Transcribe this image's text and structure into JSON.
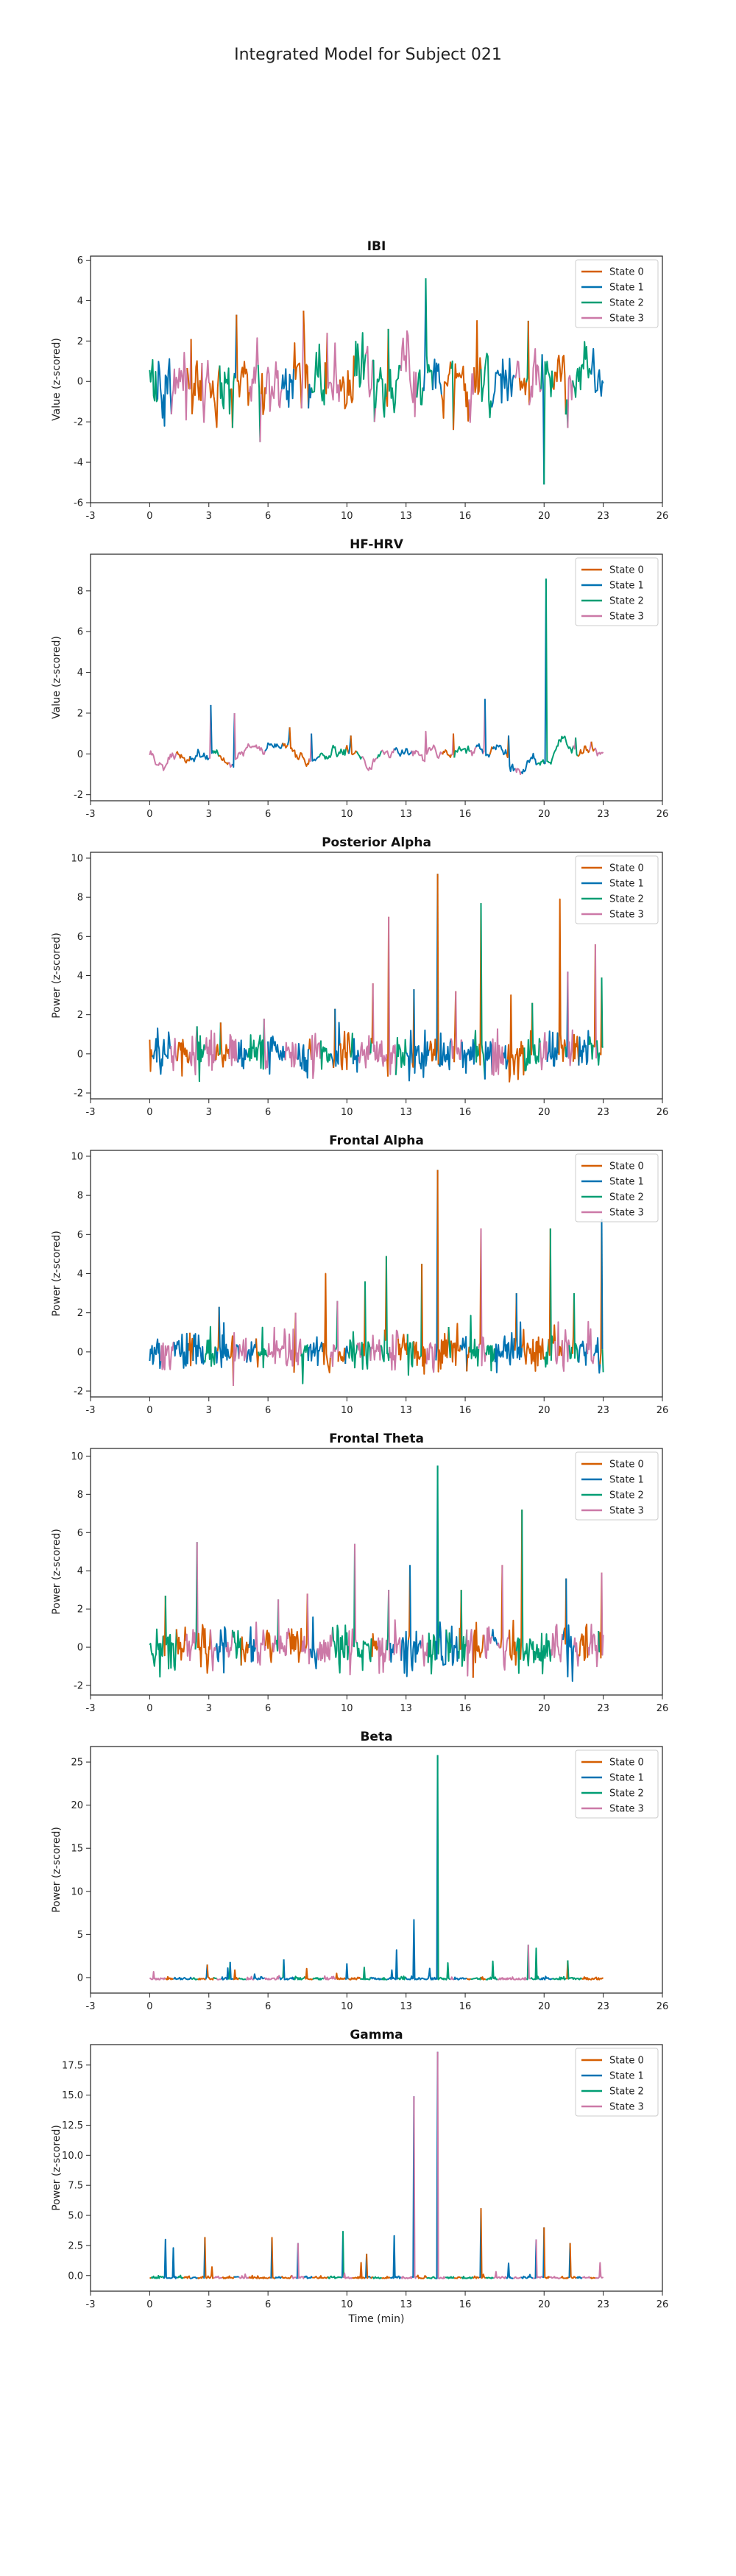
{
  "page": {
    "title": "Integrated Model for Subject 021"
  },
  "state_colors": {
    "State 0": "#d55e00",
    "State 1": "#0072b2",
    "State 2": "#009e73",
    "State 3": "#cc79a7"
  },
  "chart_data": [
    {
      "type": "line",
      "title": "IBI",
      "ylabel": "Value (z-scored)",
      "xlabel": "",
      "xlim": [
        -3,
        26
      ],
      "xticks": [
        -3,
        0,
        3,
        6,
        10,
        13,
        16,
        20,
        23,
        26
      ],
      "ylim": [
        -6,
        6.2
      ],
      "yticks": [
        -6,
        -4,
        -2,
        0,
        2,
        4,
        6
      ],
      "legend": [
        "State 0",
        "State 1",
        "State 2",
        "State 3"
      ],
      "legend_position": "top-right",
      "x_end": 23,
      "noise": {
        "scale": 0.85,
        "smooth": 0.35,
        "step": 0.05
      },
      "peaks": [
        {
          "x": 4.4,
          "y": 3.3,
          "state": "State 1"
        },
        {
          "x": 4.2,
          "y": -2.3,
          "state": "State 0"
        },
        {
          "x": 5.6,
          "y": -3.0,
          "state": "State 2"
        },
        {
          "x": 7.8,
          "y": 3.5,
          "state": "State 3"
        },
        {
          "x": 14.0,
          "y": 5.1,
          "state": "State 1"
        },
        {
          "x": 20.0,
          "y": -5.1,
          "state": "State 1"
        },
        {
          "x": 19.2,
          "y": 3.0,
          "state": "State 2"
        },
        {
          "x": 12.1,
          "y": 2.6,
          "state": "State 0"
        },
        {
          "x": 16.6,
          "y": 3.0,
          "state": "State 0"
        },
        {
          "x": 9.0,
          "y": 2.4,
          "state": "State 0"
        },
        {
          "x": 15.4,
          "y": -2.4,
          "state": "State 2"
        },
        {
          "x": 21.2,
          "y": -2.3,
          "state": "State 2"
        },
        {
          "x": 11.4,
          "y": -2.0,
          "state": "State 2"
        },
        {
          "x": 2.1,
          "y": 2.1,
          "state": "State 3"
        }
      ]
    },
    {
      "type": "line",
      "title": "HF-HRV",
      "ylabel": "Value (z-scored)",
      "xlabel": "",
      "xlim": [
        -3,
        26
      ],
      "xticks": [
        -3,
        0,
        3,
        6,
        10,
        13,
        16,
        20,
        23,
        26
      ],
      "ylim": [
        -2.3,
        9.8
      ],
      "yticks": [
        -2,
        0,
        2,
        4,
        6,
        8
      ],
      "legend": [
        "State 0",
        "State 1",
        "State 2",
        "State 3"
      ],
      "legend_position": "top-right",
      "x_end": 23,
      "noise": {
        "scale": 0.35,
        "smooth": 0.92,
        "step": 0.05
      },
      "peaks": [
        {
          "x": 3.1,
          "y": 2.4,
          "state": "State 3"
        },
        {
          "x": 4.3,
          "y": 2.0,
          "state": "State 1"
        },
        {
          "x": 7.1,
          "y": 1.3,
          "state": "State 1"
        },
        {
          "x": 8.2,
          "y": 1.0,
          "state": "State 3"
        },
        {
          "x": 10.2,
          "y": 0.9,
          "state": "State 1"
        },
        {
          "x": 14.0,
          "y": 1.1,
          "state": "State 3"
        },
        {
          "x": 15.4,
          "y": 1.0,
          "state": "State 3"
        },
        {
          "x": 17.0,
          "y": 2.7,
          "state": "State 3"
        },
        {
          "x": 18.2,
          "y": 0.9,
          "state": "State 0"
        },
        {
          "x": 20.1,
          "y": 8.6,
          "state": "State 1"
        },
        {
          "x": 21.6,
          "y": 0.8,
          "state": "State 3"
        },
        {
          "x": 22.4,
          "y": 0.6,
          "state": "State 3"
        }
      ]
    },
    {
      "type": "line",
      "title": "Posterior Alpha",
      "ylabel": "Power (z-scored)",
      "xlabel": "",
      "xlim": [
        -3,
        26
      ],
      "xticks": [
        -3,
        0,
        3,
        6,
        10,
        13,
        16,
        20,
        23,
        26
      ],
      "ylim": [
        -2.3,
        10.3
      ],
      "yticks": [
        -2,
        0,
        2,
        4,
        6,
        8,
        10
      ],
      "legend": [
        "State 0",
        "State 1",
        "State 2",
        "State 3"
      ],
      "legend_position": "top-right",
      "x_end": 23,
      "noise": {
        "scale": 0.55,
        "smooth": 0.0,
        "step": 0.04
      },
      "peaks": [
        {
          "x": 12.1,
          "y": 7.0,
          "state": "State 0"
        },
        {
          "x": 14.6,
          "y": 9.2,
          "state": "State 1"
        },
        {
          "x": 16.8,
          "y": 7.7,
          "state": "State 0"
        },
        {
          "x": 20.8,
          "y": 7.9,
          "state": "State 0"
        },
        {
          "x": 22.6,
          "y": 5.6,
          "state": "State 0"
        },
        {
          "x": 11.3,
          "y": 3.6,
          "state": "State 0"
        },
        {
          "x": 13.4,
          "y": 3.3,
          "state": "State 0"
        },
        {
          "x": 15.5,
          "y": 3.2,
          "state": "State 0"
        },
        {
          "x": 19.4,
          "y": 2.6,
          "state": "State 0"
        },
        {
          "x": 21.2,
          "y": 4.2,
          "state": "State 1"
        },
        {
          "x": 9.4,
          "y": 2.3,
          "state": "State 0"
        },
        {
          "x": 18.3,
          "y": 3.0,
          "state": "State 0"
        },
        {
          "x": 22.9,
          "y": 3.9,
          "state": "State 0"
        },
        {
          "x": 5.8,
          "y": 1.8,
          "state": "State 2"
        },
        {
          "x": 3.6,
          "y": 1.6,
          "state": "State 2"
        }
      ]
    },
    {
      "type": "line",
      "title": "Frontal Alpha",
      "ylabel": "Power (z-scored)",
      "xlabel": "",
      "xlim": [
        -3,
        26
      ],
      "xticks": [
        -3,
        0,
        3,
        6,
        10,
        13,
        16,
        20,
        23,
        26
      ],
      "ylim": [
        -2.3,
        10.3
      ],
      "yticks": [
        -2,
        0,
        2,
        4,
        6,
        8,
        10
      ],
      "legend": [
        "State 0",
        "State 1",
        "State 2",
        "State 3"
      ],
      "legend_position": "top-right",
      "x_end": 23,
      "noise": {
        "scale": 0.55,
        "smooth": 0.0,
        "step": 0.04
      },
      "peaks": [
        {
          "x": 8.9,
          "y": 4.0,
          "state": "State 0"
        },
        {
          "x": 10.9,
          "y": 3.6,
          "state": "State 0"
        },
        {
          "x": 12.0,
          "y": 4.9,
          "state": "State 0"
        },
        {
          "x": 13.8,
          "y": 4.5,
          "state": "State 2"
        },
        {
          "x": 14.6,
          "y": 9.3,
          "state": "State 1"
        },
        {
          "x": 16.8,
          "y": 6.3,
          "state": "State 0"
        },
        {
          "x": 20.3,
          "y": 6.3,
          "state": "State 0"
        },
        {
          "x": 22.9,
          "y": 6.8,
          "state": "State 0"
        },
        {
          "x": 18.6,
          "y": 3.0,
          "state": "State 0"
        },
        {
          "x": 21.5,
          "y": 3.0,
          "state": "State 0"
        },
        {
          "x": 3.5,
          "y": 2.3,
          "state": "State 0"
        },
        {
          "x": 7.4,
          "y": 2.0,
          "state": "State 0"
        },
        {
          "x": 9.5,
          "y": 2.6,
          "state": "State 2"
        }
      ]
    },
    {
      "type": "line",
      "title": "Frontal Theta",
      "ylabel": "Power (z-scored)",
      "xlabel": "",
      "xlim": [
        -3,
        26
      ],
      "xticks": [
        -3,
        0,
        3,
        6,
        10,
        13,
        16,
        20,
        23,
        26
      ],
      "ylim": [
        -2.5,
        10.4
      ],
      "yticks": [
        -2,
        0,
        2,
        4,
        6,
        8,
        10
      ],
      "legend": [
        "State 0",
        "State 1",
        "State 2",
        "State 3"
      ],
      "legend_position": "top-right",
      "x_end": 23,
      "noise": {
        "scale": 0.6,
        "smooth": 0.0,
        "step": 0.04
      },
      "peaks": [
        {
          "x": 2.4,
          "y": 5.5,
          "state": "State 2"
        },
        {
          "x": 10.4,
          "y": 5.4,
          "state": "State 2"
        },
        {
          "x": 14.6,
          "y": 9.5,
          "state": "State 1"
        },
        {
          "x": 18.9,
          "y": 7.2,
          "state": "State 0"
        },
        {
          "x": 13.2,
          "y": 4.3,
          "state": "State 0"
        },
        {
          "x": 17.9,
          "y": 4.3,
          "state": "State 0"
        },
        {
          "x": 22.9,
          "y": 3.9,
          "state": "State 0"
        },
        {
          "x": 21.1,
          "y": 3.6,
          "state": "State 0"
        },
        {
          "x": 15.8,
          "y": 3.0,
          "state": "State 0"
        },
        {
          "x": 12.1,
          "y": 3.0,
          "state": "State 2"
        },
        {
          "x": 0.8,
          "y": 2.7,
          "state": "State 0"
        },
        {
          "x": 6.5,
          "y": 2.5,
          "state": "State 2"
        },
        {
          "x": 8.0,
          "y": 2.8,
          "state": "State 0"
        },
        {
          "x": 16.4,
          "y": -1.6,
          "state": "State 3"
        }
      ]
    },
    {
      "type": "line",
      "title": "Beta",
      "ylabel": "Power (z-scored)",
      "xlabel": "",
      "xlim": [
        -3,
        26
      ],
      "xticks": [
        -3,
        0,
        3,
        6,
        10,
        13,
        16,
        20,
        23,
        26
      ],
      "ylim": [
        -1.8,
        26.8
      ],
      "yticks": [
        0,
        5,
        10,
        15,
        20,
        25
      ],
      "legend": [
        "State 0",
        "State 1",
        "State 2",
        "State 3"
      ],
      "legend_position": "top-right",
      "x_end": 23,
      "noise": {
        "scale": 0.25,
        "smooth": 0.0,
        "step": 0.04
      },
      "peaks": [
        {
          "x": 14.6,
          "y": 25.8,
          "state": "State 1"
        },
        {
          "x": 13.4,
          "y": 6.7,
          "state": "State 1"
        },
        {
          "x": 12.5,
          "y": 3.2,
          "state": "State 1"
        },
        {
          "x": 19.2,
          "y": 3.8,
          "state": "State 2"
        },
        {
          "x": 19.6,
          "y": 3.4,
          "state": "State 2"
        },
        {
          "x": 4.1,
          "y": 1.8,
          "state": "State 2"
        },
        {
          "x": 6.8,
          "y": 2.1,
          "state": "State 2"
        },
        {
          "x": 10.0,
          "y": 1.6,
          "state": "State 1"
        },
        {
          "x": 17.4,
          "y": 1.9,
          "state": "State 2"
        },
        {
          "x": 21.2,
          "y": 2.0,
          "state": "State 0"
        },
        {
          "x": 2.9,
          "y": 1.5,
          "state": "State 1"
        },
        {
          "x": 15.1,
          "y": 1.7,
          "state": "State 2"
        }
      ]
    },
    {
      "type": "line",
      "title": "Gamma",
      "ylabel": "Power (z-scored)",
      "xlabel": "Time (min)",
      "xlim": [
        -3,
        26
      ],
      "xticks": [
        -3,
        0,
        3,
        6,
        10,
        13,
        16,
        20,
        23,
        26
      ],
      "ylim": [
        -1.3,
        19.2
      ],
      "yticks": [
        0.0,
        2.5,
        5.0,
        7.5,
        10.0,
        12.5,
        15.0,
        17.5
      ],
      "legend": [
        "State 0",
        "State 1",
        "State 2",
        "State 3"
      ],
      "legend_position": "top-right",
      "x_end": 23,
      "noise": {
        "scale": 0.15,
        "smooth": 0.0,
        "step": 0.04
      },
      "peaks": [
        {
          "x": 14.6,
          "y": 18.6,
          "state": "State 1"
        },
        {
          "x": 13.4,
          "y": 14.9,
          "state": "State 1"
        },
        {
          "x": 16.8,
          "y": 5.6,
          "state": "State 1"
        },
        {
          "x": 20.0,
          "y": 4.0,
          "state": "State 1"
        },
        {
          "x": 19.6,
          "y": 3.0,
          "state": "State 1"
        },
        {
          "x": 9.8,
          "y": 3.7,
          "state": "State 1"
        },
        {
          "x": 6.2,
          "y": 3.2,
          "state": "State 1"
        },
        {
          "x": 0.8,
          "y": 3.0,
          "state": "State 1"
        },
        {
          "x": 2.8,
          "y": 3.2,
          "state": "State 1"
        },
        {
          "x": 12.4,
          "y": 3.3,
          "state": "State 1"
        },
        {
          "x": 7.5,
          "y": 2.7,
          "state": "State 1"
        },
        {
          "x": 21.3,
          "y": 2.7,
          "state": "State 1"
        },
        {
          "x": 11.0,
          "y": 1.8,
          "state": "State 1"
        },
        {
          "x": 1.2,
          "y": 2.3,
          "state": "State 1"
        }
      ]
    }
  ]
}
